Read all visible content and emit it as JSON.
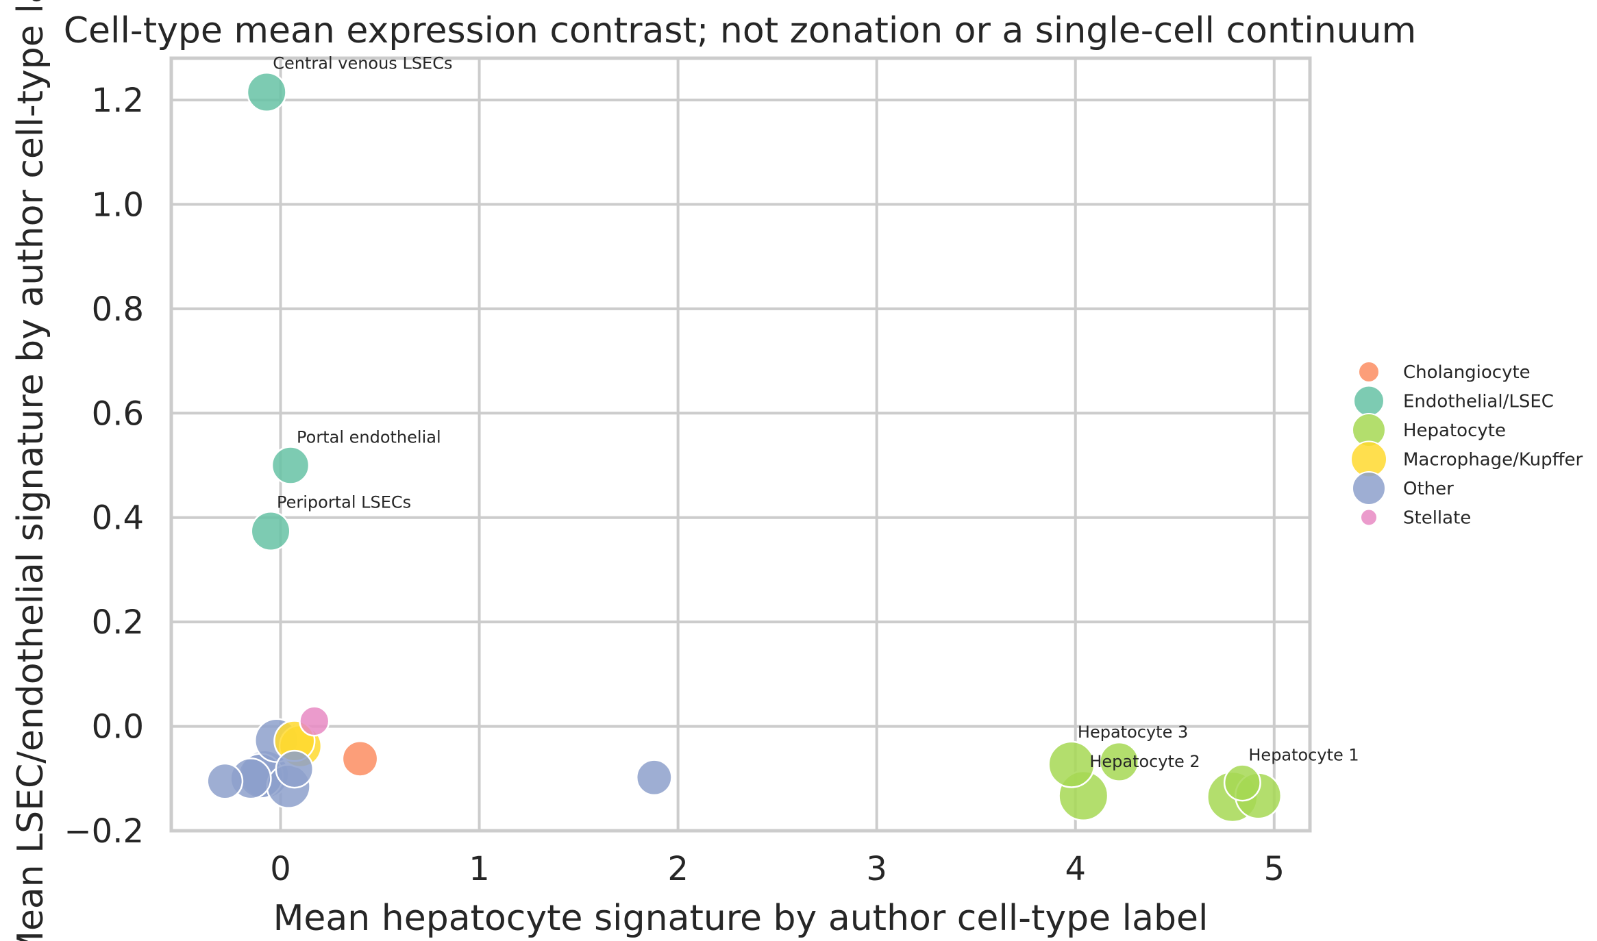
{
  "chart_data": {
    "type": "scatter",
    "title": "Cell-type mean expression contrast; not zonation or a single-cell continuum",
    "xlabel": "Mean hepatocyte signature by author cell-type label",
    "ylabel": "Mean LSEC/endothelial signature by author cell-type label",
    "xlim": [
      -0.55,
      5.18
    ],
    "ylim": [
      -0.2,
      1.28
    ],
    "xticks": [
      "0",
      "1",
      "2",
      "3",
      "4",
      "5"
    ],
    "yticks": [
      "−0.2",
      "0.0",
      "0.2",
      "0.4",
      "0.6",
      "0.8",
      "1.0",
      "1.2"
    ],
    "grid": true,
    "legend_position": "right",
    "groups": [
      {
        "name": "Cholangiocyte",
        "color": "#fc8d62"
      },
      {
        "name": "Endothelial/LSEC",
        "color": "#66c2a5"
      },
      {
        "name": "Hepatocyte",
        "color": "#a6d854"
      },
      {
        "name": "Macrophage/Kupffer",
        "color": "#ffd92f"
      },
      {
        "name": "Other",
        "color": "#8da0cb"
      },
      {
        "name": "Stellate",
        "color": "#e78ac3"
      }
    ],
    "points": [
      {
        "group": "Cholangiocyte",
        "x": 0.4,
        "y": -0.062,
        "size": 0.2
      },
      {
        "group": "Endothelial/LSEC",
        "x": -0.07,
        "y": 1.215,
        "size": 0.3,
        "label": "Central venous LSECs"
      },
      {
        "group": "Endothelial/LSEC",
        "x": 0.05,
        "y": 0.5,
        "size": 0.25,
        "label": "Portal endothelial"
      },
      {
        "group": "Endothelial/LSEC",
        "x": -0.05,
        "y": 0.374,
        "size": 0.3,
        "label": "Periportal LSECs"
      },
      {
        "group": "Hepatocyte",
        "x": 3.98,
        "y": -0.073,
        "size": 0.55,
        "label": "Hepatocyte 3"
      },
      {
        "group": "Hepatocyte",
        "x": 4.22,
        "y": -0.068,
        "size": 0.3
      },
      {
        "group": "Hepatocyte",
        "x": 4.04,
        "y": -0.133,
        "size": 0.7,
        "label": "Hepatocyte 2"
      },
      {
        "group": "Hepatocyte",
        "x": 4.79,
        "y": -0.135,
        "size": 0.75
      },
      {
        "group": "Hepatocyte",
        "x": 4.92,
        "y": -0.133,
        "size": 0.55
      },
      {
        "group": "Hepatocyte",
        "x": 4.84,
        "y": -0.108,
        "size": 0.22,
        "label": "Hepatocyte 1"
      },
      {
        "group": "Macrophage/Kupffer",
        "x": 0.07,
        "y": -0.028,
        "size": 0.35
      },
      {
        "group": "Macrophage/Kupffer",
        "x": 0.1,
        "y": -0.038,
        "size": 0.4
      },
      {
        "group": "Other",
        "x": -0.28,
        "y": -0.105,
        "size": 0.2
      },
      {
        "group": "Other",
        "x": -0.15,
        "y": -0.1,
        "size": 0.35
      },
      {
        "group": "Other",
        "x": -0.1,
        "y": -0.095,
        "size": 0.5
      },
      {
        "group": "Other",
        "x": -0.08,
        "y": -0.092,
        "size": 0.65
      },
      {
        "group": "Other",
        "x": -0.02,
        "y": -0.027,
        "size": 0.45
      },
      {
        "group": "Other",
        "x": 0.07,
        "y": -0.082,
        "size": 0.25
      },
      {
        "group": "Other",
        "x": 0.04,
        "y": -0.115,
        "size": 0.45
      },
      {
        "group": "Other",
        "x": 1.88,
        "y": -0.098,
        "size": 0.2
      },
      {
        "group": "Stellate",
        "x": 0.17,
        "y": 0.01,
        "size": 0.08
      }
    ]
  }
}
